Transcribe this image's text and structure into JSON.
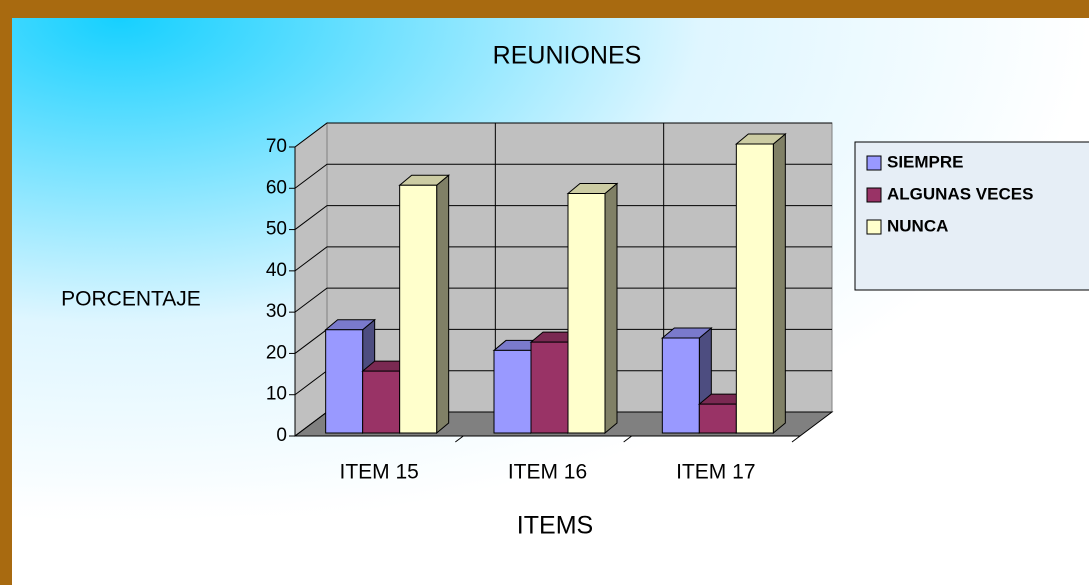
{
  "chart_data": {
    "type": "bar3d",
    "title": "REUNIONES",
    "x_label": "ITEMS",
    "y_label": "PORCENTAJE",
    "categories": [
      "ITEM 15",
      "ITEM 16",
      "ITEM 17"
    ],
    "series": [
      {
        "name": "SIEMPRE",
        "color": "#9999ff",
        "values": [
          25,
          20,
          23
        ]
      },
      {
        "name": "ALGUNAS VECES",
        "color": "#993366",
        "values": [
          15,
          22,
          7
        ]
      },
      {
        "name": "NUNCA",
        "color": "#ffffcc",
        "values": [
          60,
          58,
          70
        ]
      }
    ],
    "ylim": [
      0,
      70
    ],
    "yticks": [
      0,
      10,
      20,
      30,
      40,
      50,
      60,
      70
    ],
    "grid": true,
    "legend": "right"
  }
}
